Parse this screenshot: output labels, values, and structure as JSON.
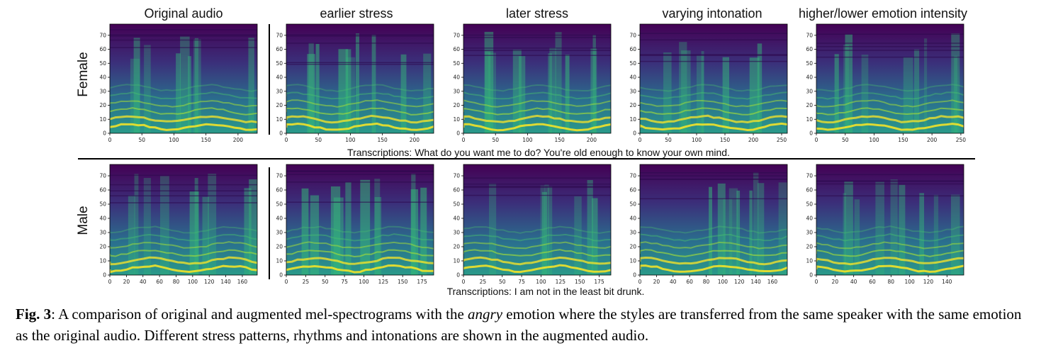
{
  "columns": [
    "Original audio",
    "earlier stress",
    "later stress",
    "varying intonation",
    "higher/lower emotion intensity"
  ],
  "rows": [
    "Female",
    "Male"
  ],
  "transcriptions": {
    "female": "Transcriptions: What do you want me to do?  You're old enough to know your own mind.",
    "male": "Transcriptions: I am not in the least bit drunk."
  },
  "panels": [
    {
      "row": "Female",
      "column": "Original audio",
      "xmax": 230,
      "xticks": [
        "0",
        "50",
        "100",
        "150",
        "200"
      ],
      "yticks": [
        "0",
        "10",
        "20",
        "30",
        "40",
        "50",
        "60",
        "70"
      ]
    },
    {
      "row": "Female",
      "column": "earlier stress",
      "xmax": 230,
      "xticks": [
        "0",
        "50",
        "100",
        "150",
        "200"
      ],
      "yticks": [
        "0",
        "10",
        "20",
        "30",
        "40",
        "50",
        "60",
        "70"
      ]
    },
    {
      "row": "Female",
      "column": "later stress",
      "xmax": 230,
      "xticks": [
        "0",
        "50",
        "100",
        "150",
        "200"
      ],
      "yticks": [
        "0",
        "10",
        "20",
        "30",
        "40",
        "50",
        "60",
        "70"
      ]
    },
    {
      "row": "Female",
      "column": "varying intonation",
      "xmax": 260,
      "xticks": [
        "0",
        "50",
        "100",
        "150",
        "200",
        "250"
      ],
      "yticks": [
        "0",
        "10",
        "20",
        "30",
        "40",
        "50",
        "60",
        "70"
      ]
    },
    {
      "row": "Female",
      "column": "higher/lower emotion intensity",
      "xmax": 255,
      "xticks": [
        "0",
        "50",
        "100",
        "150",
        "200",
        "250"
      ],
      "yticks": [
        "0",
        "10",
        "20",
        "30",
        "40",
        "50",
        "60",
        "70"
      ]
    },
    {
      "row": "Male",
      "column": "Original audio",
      "xmax": 178,
      "xticks": [
        "0",
        "20",
        "40",
        "60",
        "80",
        "100",
        "120",
        "140",
        "160"
      ],
      "yticks": [
        "0",
        "10",
        "20",
        "30",
        "40",
        "50",
        "60",
        "70"
      ]
    },
    {
      "row": "Male",
      "column": "earlier stress",
      "xmax": 190,
      "xticks": [
        "0",
        "25",
        "50",
        "75",
        "100",
        "125",
        "150",
        "175"
      ],
      "yticks": [
        "0",
        "10",
        "20",
        "30",
        "40",
        "50",
        "60",
        "70"
      ]
    },
    {
      "row": "Male",
      "column": "later stress",
      "xmax": 190,
      "xticks": [
        "0",
        "25",
        "50",
        "75",
        "100",
        "125",
        "150",
        "175"
      ],
      "yticks": [
        "0",
        "10",
        "20",
        "30",
        "40",
        "50",
        "60",
        "70"
      ]
    },
    {
      "row": "Male",
      "column": "varying intonation",
      "xmax": 178,
      "xticks": [
        "0",
        "20",
        "40",
        "60",
        "80",
        "100",
        "120",
        "140",
        "160"
      ],
      "yticks": [
        "0",
        "10",
        "20",
        "30",
        "40",
        "50",
        "60",
        "70"
      ]
    },
    {
      "row": "Male",
      "column": "higher/lower emotion intensity",
      "xmax": 158,
      "xticks": [
        "0",
        "20",
        "40",
        "60",
        "80",
        "100",
        "120",
        "140"
      ],
      "yticks": [
        "0",
        "10",
        "20",
        "30",
        "40",
        "50",
        "60",
        "70"
      ]
    }
  ],
  "caption": {
    "label": "Fig. 3",
    "text_before": ": A comparison of original and augmented mel-spectrograms with the ",
    "emphasis": "angry",
    "text_after": " emotion where the styles are transferred from the same speaker with the same emotion as the original audio. Different stress patterns, rhythms and intonations are shown in the augmented audio."
  },
  "colors": {
    "viridis_low": "#440154",
    "viridis_mid": "#21918c",
    "viridis_high": "#fde725"
  }
}
